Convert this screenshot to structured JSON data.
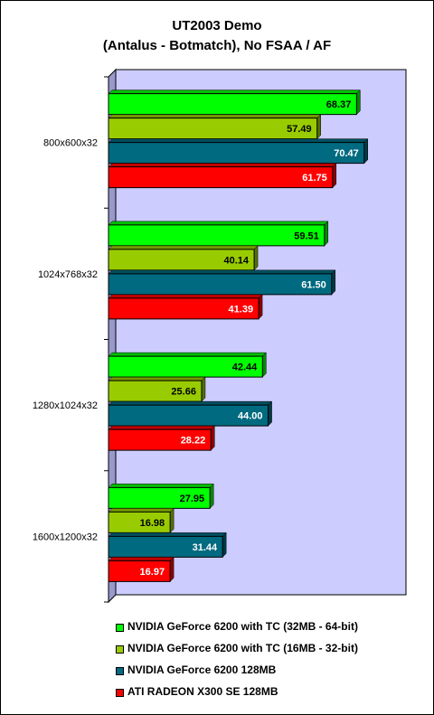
{
  "chart_data": {
    "type": "bar",
    "orientation": "horizontal",
    "title": "UT2003 Demo",
    "subtitle": "(Antalus - Botmatch), No FSAA / AF",
    "categories": [
      "800x600x32",
      "1024x768x32",
      "1280x1024x32",
      "1600x1200x32"
    ],
    "series": [
      {
        "name": "NVIDIA GeForce 6200 with TC (32MB - 64-bit)",
        "color": "#00ff00",
        "label_color": "#000000",
        "values": [
          68.37,
          59.51,
          42.44,
          27.95
        ]
      },
      {
        "name": "NVIDIA GeForce 6200 with TC (16MB - 32-bit)",
        "color": "#99cc00",
        "label_color": "#000000",
        "values": [
          57.49,
          40.14,
          25.66,
          16.98
        ]
      },
      {
        "name": "NVIDIA GeForce 6200 128MB",
        "color": "#006a80",
        "label_color": "#ffffff",
        "values": [
          70.47,
          61.5,
          44.0,
          31.44
        ]
      },
      {
        "name": "ATI RADEON X300 SE 128MB",
        "color": "#ff0000",
        "label_color": "#ffffff",
        "values": [
          61.75,
          41.39,
          28.22,
          16.97
        ]
      }
    ],
    "xlim": [
      0,
      80
    ],
    "plot_background": "#ccccff",
    "grid": false,
    "legend_position": "bottom"
  }
}
